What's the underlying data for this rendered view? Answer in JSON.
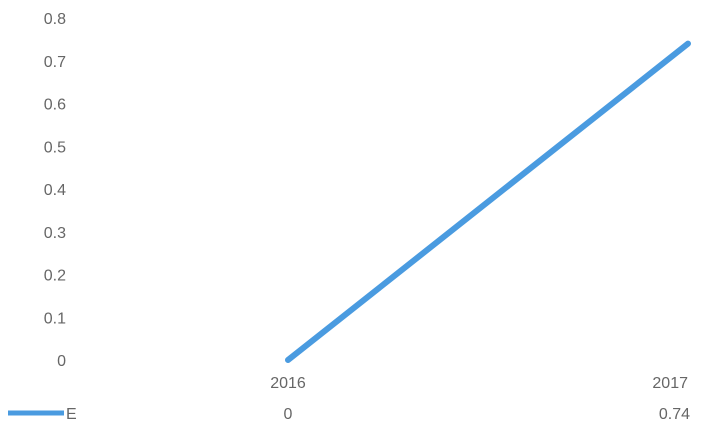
{
  "chart_data": {
    "type": "line",
    "title": "",
    "xlabel": "",
    "ylabel": "",
    "categories": [
      "2016",
      "2017"
    ],
    "ylim": [
      0,
      0.8
    ],
    "yticks": [
      "0",
      "0.1",
      "0.2",
      "0.3",
      "0.4",
      "0.5",
      "0.6",
      "0.7",
      "0.8"
    ],
    "grid": false,
    "legend": "bottom-left",
    "series": [
      {
        "name": "E",
        "values": [
          0,
          0.74
        ],
        "color": "#4A9BE0"
      }
    ],
    "data_table": {
      "label": "E",
      "values": [
        "0",
        "0.74"
      ]
    }
  }
}
